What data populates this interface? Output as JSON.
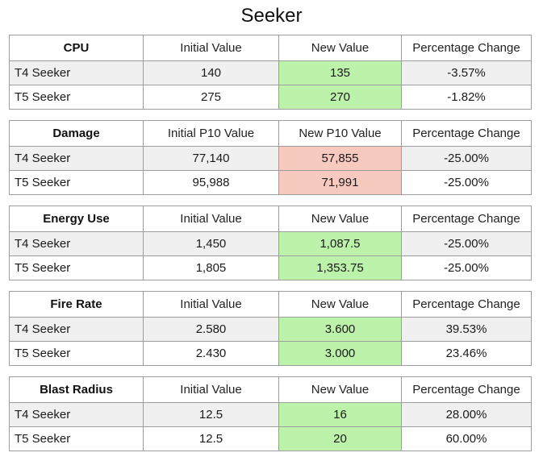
{
  "page": {
    "title": "Seeker"
  },
  "colors": {
    "positive_highlight_bg": "#bdf2aa",
    "negative_highlight_bg": "#f8c9bf",
    "alt_row_bg": "#f0f0f0",
    "table_border": "#9c9c9c"
  },
  "tables": [
    {
      "name": "CPU",
      "headers": [
        "Initial Value",
        "New Value",
        "Percentage Change"
      ],
      "rows": [
        {
          "label": "T4 Seeker",
          "initial": "140",
          "new": "135",
          "highlight": "positive",
          "change": "-3.57%"
        },
        {
          "label": "T5 Seeker",
          "initial": "275",
          "new": "270",
          "highlight": "positive",
          "change": "-1.82%"
        }
      ]
    },
    {
      "name": "Damage",
      "headers": [
        "Initial P10 Value",
        "New P10 Value",
        "Percentage Change"
      ],
      "rows": [
        {
          "label": "T4 Seeker",
          "initial": "77,140",
          "new": "57,855",
          "highlight": "negative",
          "change": "-25.00%"
        },
        {
          "label": "T5 Seeker",
          "initial": "95,988",
          "new": "71,991",
          "highlight": "negative",
          "change": "-25.00%"
        }
      ]
    },
    {
      "name": "Energy Use",
      "headers": [
        "Initial Value",
        "New Value",
        "Percentage Change"
      ],
      "rows": [
        {
          "label": "T4 Seeker",
          "initial": "1,450",
          "new": "1,087.5",
          "highlight": "positive",
          "change": "-25.00%"
        },
        {
          "label": "T5 Seeker",
          "initial": "1,805",
          "new": "1,353.75",
          "highlight": "positive",
          "change": "-25.00%"
        }
      ]
    },
    {
      "name": "Fire Rate",
      "headers": [
        "Initial Value",
        "New Value",
        "Percentage Change"
      ],
      "rows": [
        {
          "label": "T4 Seeker",
          "initial": "2.580",
          "new": "3.600",
          "highlight": "positive",
          "change": "39.53%"
        },
        {
          "label": "T5 Seeker",
          "initial": "2.430",
          "new": "3.000",
          "highlight": "positive",
          "change": "23.46%"
        }
      ]
    },
    {
      "name": "Blast Radius",
      "headers": [
        "Initial Value",
        "New Value",
        "Percentage Change"
      ],
      "rows": [
        {
          "label": "T4 Seeker",
          "initial": "12.5",
          "new": "16",
          "highlight": "positive",
          "change": "28.00%"
        },
        {
          "label": "T5 Seeker",
          "initial": "12.5",
          "new": "20",
          "highlight": "positive",
          "change": "60.00%"
        }
      ]
    }
  ]
}
